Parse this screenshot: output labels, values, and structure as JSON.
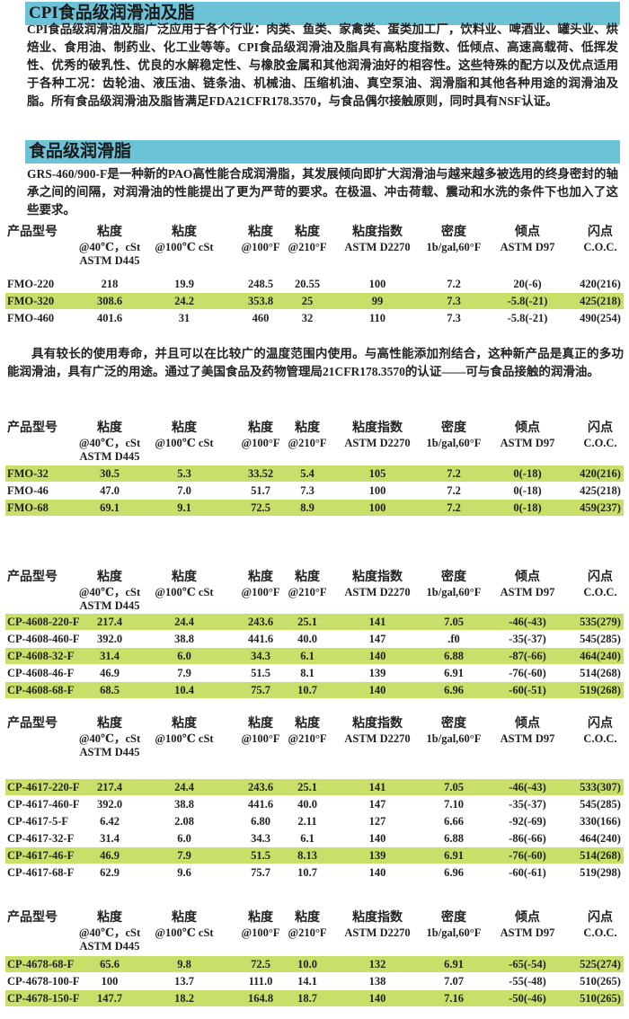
{
  "section1": {
    "title": "CPI食品级润滑油及脂",
    "text": "CPI食品级润滑油及脂广泛应用于各个行业：肉类、鱼类、家禽类、蛋类加工厂，饮料业、啤酒业、罐头业、烘焙业、食用油、制药业、化工业等等。CPI食品级润滑油及脂具有高粘度指数、低倾点、高速高载荷、低挥发性、优秀的破乳性、优良的水解稳定性、与橡胶金属和其他润滑油好的相容性。这些特殊的配方以及优点适用于各种工况：齿轮油、液压油、链条油、机械油、压缩机油、真空泵油、润滑脂和其他各种用途的润滑油及脂。所有食品级润滑油及脂皆满足FDA21CFR178.3570，与食品偶尔接触原则，同时具有NSF认证。"
  },
  "section2": {
    "title": "食品级润滑脂",
    "text": "GRS-460/900-F是一种新的PAO高性能合成润滑脂，其发展倾向即扩大润滑油与越来越多被选用的终身密封的轴承之间的间隔，对润滑油的性能提出了更为严苛的要求。在极温、冲击荷载、震动和水洗的条件下也加入了这些要求。"
  },
  "section3": {
    "text": "具有较长的使用寿命，并且可以在比较广的温度范围内使用。与高性能添加剂结合，这种新产品是真正的多功能润滑油，具有广泛的用途。通过了美国食品及药物管理局21CFR178.3570的认证——可与食品接触的润滑油。"
  },
  "header": {
    "model": "产品型号",
    "cols": [
      {
        "title": "粘度",
        "sub": "@40℃，cSt",
        "sub2": "ASTM D445"
      },
      {
        "title": "粘度",
        "sub": "@100℃ cSt"
      },
      {
        "title": "粘度",
        "sub": "@100°F"
      },
      {
        "title": "粘度",
        "sub": "@210°F"
      },
      {
        "title": "粘度指数",
        "sub": "ASTM D2270"
      },
      {
        "title": "密度",
        "sub": "1b/gal,60°F"
      },
      {
        "title": "倾点",
        "sub": "ASTM D97"
      },
      {
        "title": "闪点",
        "sub": "C.O.C."
      }
    ]
  },
  "colors": {
    "bar": "#6cc3d8",
    "highlight": "#c8e06a"
  },
  "tables": [
    {
      "rows": [
        {
          "hl": false,
          "v": [
            "FMO-220",
            "218",
            "19.9",
            "248.5",
            "20.55",
            "100",
            "7.2",
            "20(-6)",
            "420(216)"
          ]
        },
        {
          "hl": true,
          "v": [
            "FMO-320",
            "308.6",
            "24.2",
            "353.8",
            "25",
            "99",
            "7.3",
            "-5.8(-21)",
            "425(218)"
          ]
        },
        {
          "hl": false,
          "v": [
            "FMO-460",
            "401.6",
            "31",
            "460",
            "32",
            "110",
            "7.3",
            "-5.8(-21)",
            "490(254)"
          ]
        }
      ]
    },
    {
      "rows": [
        {
          "hl": true,
          "v": [
            "FMO-32",
            "30.5",
            "5.3",
            "33.52",
            "5.4",
            "105",
            "7.2",
            "0(-18)",
            "420(216)"
          ]
        },
        {
          "hl": false,
          "v": [
            "FMO-46",
            "47.0",
            "7.0",
            "51.7",
            "7.3",
            "100",
            "7.2",
            "0(-18)",
            "425(218)"
          ]
        },
        {
          "hl": true,
          "v": [
            "FMO-68",
            "69.1",
            "9.1",
            "72.5",
            "8.9",
            "100",
            "7.2",
            "0(-18)",
            "459(237)"
          ]
        }
      ]
    },
    {
      "rows": [
        {
          "hl": true,
          "v": [
            "CP-4608-220-F",
            "217.4",
            "24.4",
            "243.6",
            "25.1",
            "141",
            "7.05",
            "-46(-43)",
            "535(279)"
          ]
        },
        {
          "hl": false,
          "v": [
            "CP-4608-460-F",
            "392.0",
            "38.8",
            "441.6",
            "40.0",
            "147",
            ".f0",
            "-35(-37)",
            "545(285)"
          ]
        },
        {
          "hl": true,
          "v": [
            "CP-4608-32-F",
            "31.4",
            "6.0",
            "34.3",
            "6.1",
            "140",
            "6.88",
            "-87(-66)",
            "464(240)"
          ]
        },
        {
          "hl": false,
          "v": [
            "CP-4608-46-F",
            "46.9",
            "7.9",
            "51.5",
            "8.1",
            "139",
            "6.91",
            "-76(-60)",
            "514(268)"
          ]
        },
        {
          "hl": true,
          "v": [
            "CP-4608-68-F",
            "68.5",
            "10.4",
            "75.7",
            "10.7",
            "140",
            "6.96",
            "-60(-51)",
            "519(268)"
          ]
        }
      ]
    },
    {
      "rows": [
        {
          "hl": true,
          "v": [
            "CP-4617-220-F",
            "217.4",
            "24.4",
            "243.6",
            "25.1",
            "141",
            "7.05",
            "-46(-43)",
            "533(307)"
          ]
        },
        {
          "hl": false,
          "v": [
            "CP-4617-460-F",
            "392.0",
            "38.8",
            "441.6",
            "40.0",
            "147",
            "7.10",
            "-35(-37)",
            "545(285)"
          ]
        },
        {
          "hl": false,
          "v": [
            "CP-4617-5-F",
            "6.42",
            "2.08",
            "6.80",
            "2.11",
            "127",
            "6.66",
            "-92(-69)",
            "330(166)"
          ]
        },
        {
          "hl": false,
          "v": [
            "CP-4617-32-F",
            "31.4",
            "6.0",
            "34.3",
            "6.1",
            "140",
            "6.88",
            "-86(-66)",
            "464(240)"
          ]
        },
        {
          "hl": true,
          "v": [
            "CP-4617-46-F",
            "46.9",
            "7.9",
            "51.5",
            "8.13",
            "139",
            "6.91",
            "-76(-60)",
            "514(268)"
          ]
        },
        {
          "hl": false,
          "v": [
            "CP-4617-68-F",
            "62.9",
            "9.6",
            "75.7",
            "10.7",
            "140",
            "6.96",
            "-60(-61)",
            "519(298)"
          ]
        }
      ]
    },
    {
      "rows": [
        {
          "hl": true,
          "v": [
            "CP-4678-68-F",
            "65.6",
            "9.8",
            "72.5",
            "10.0",
            "132",
            "6.91",
            "-65(-54)",
            "525(274)"
          ]
        },
        {
          "hl": false,
          "v": [
            "CP-4678-100-F",
            "100",
            "13.7",
            "111.0",
            "14.1",
            "138",
            "7.07",
            "-55(-48)",
            "510(265)"
          ]
        },
        {
          "hl": true,
          "v": [
            "CP-4678-150-F",
            "147.7",
            "18.2",
            "164.8",
            "18.7",
            "140",
            "7.16",
            "-50(-46)",
            "510(265)"
          ]
        }
      ]
    }
  ]
}
